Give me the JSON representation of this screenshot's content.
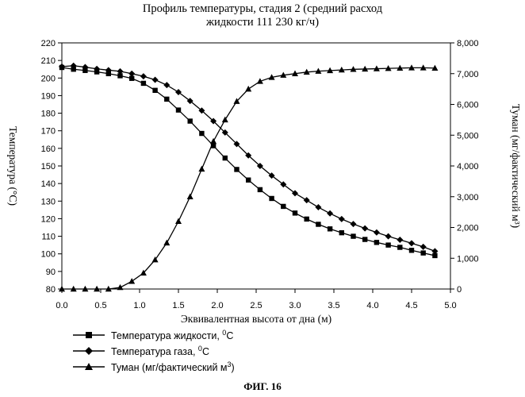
{
  "figure": {
    "title_line1": "Профиль температуры, стадия 2 (средний расход",
    "title_line2": "жидкости 111 230 кг/ч)",
    "label": "ФИГ. 16"
  },
  "chart_data": {
    "type": "line",
    "title": "Профиль температуры, стадия 2 (средний расход жидкости 111 230 кг/ч)",
    "xlabel": "Эквивалентная высота от дна (м)",
    "ylabel_left": "Температура (°C)",
    "ylabel_right": "Туман (мг/фактический м³)",
    "xlim": [
      0.0,
      5.0
    ],
    "ylim_left": [
      80,
      220
    ],
    "ylim_right": [
      0,
      8000
    ],
    "x_ticks": [
      "0.0",
      "0.5",
      "1.0",
      "1.5",
      "2.0",
      "2.5",
      "3.0",
      "3.5",
      "4.0",
      "4.5",
      "5.0"
    ],
    "y_left_ticks": [
      "80",
      "90",
      "100",
      "110",
      "120",
      "130",
      "140",
      "150",
      "160",
      "170",
      "180",
      "190",
      "200",
      "210",
      "220"
    ],
    "y_right_ticks": [
      "0",
      "1,000",
      "2,000",
      "3,000",
      "4,000",
      "5,000",
      "6,000",
      "7,000",
      "8,000"
    ],
    "grid": false,
    "legend_position": "bottom-left",
    "x": [
      0.0,
      0.15,
      0.3,
      0.45,
      0.6,
      0.75,
      0.9,
      1.05,
      1.2,
      1.35,
      1.5,
      1.65,
      1.8,
      1.95,
      2.1,
      2.25,
      2.4,
      2.55,
      2.7,
      2.85,
      3.0,
      3.15,
      3.3,
      3.45,
      3.6,
      3.75,
      3.9,
      4.05,
      4.2,
      4.35,
      4.5,
      4.65,
      4.8
    ],
    "series": [
      {
        "name": "Температура жидкости,",
        "unit_text": "C",
        "unit_sup": "0",
        "axis": "left",
        "marker": "square",
        "values": [
          206.0,
          205.0,
          204.3,
          203.5,
          202.5,
          201.3,
          199.8,
          197.0,
          193.0,
          188.0,
          181.8,
          175.5,
          168.5,
          161.5,
          154.5,
          148.0,
          142.0,
          136.5,
          131.5,
          127.0,
          123.2,
          119.8,
          116.8,
          114.2,
          112.0,
          110.0,
          108.2,
          106.5,
          105.0,
          103.7,
          102.0,
          100.5,
          99.0
        ]
      },
      {
        "name": "Температура газа,",
        "unit_text": "C",
        "unit_sup": "0",
        "axis": "left",
        "marker": "diamond",
        "values": [
          206.5,
          207.0,
          206.2,
          205.2,
          204.5,
          203.8,
          202.5,
          201.0,
          199.0,
          196.0,
          192.0,
          187.0,
          181.5,
          175.5,
          169.0,
          162.5,
          156.0,
          150.0,
          144.5,
          139.5,
          134.5,
          130.5,
          126.5,
          123.0,
          119.8,
          117.0,
          114.5,
          112.2,
          110.0,
          108.0,
          106.0,
          104.0,
          101.5
        ]
      },
      {
        "name": "Туман (мг/фактический м",
        "unit_text": ")",
        "unit_sup": "3",
        "axis": "right",
        "marker": "triangle",
        "values": [
          0,
          0,
          0,
          0,
          0,
          50,
          250,
          520,
          950,
          1500,
          2200,
          3000,
          3900,
          4800,
          5500,
          6100,
          6500,
          6750,
          6880,
          6950,
          7000,
          7050,
          7080,
          7100,
          7120,
          7140,
          7150,
          7160,
          7170,
          7180,
          7190,
          7190,
          7180
        ]
      }
    ]
  }
}
